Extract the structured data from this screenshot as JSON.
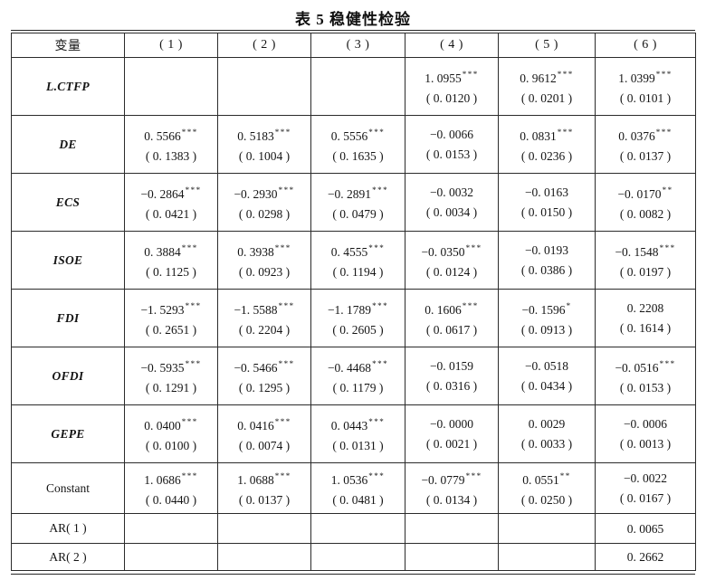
{
  "title": "表 5  稳健性检验",
  "table": {
    "header": [
      "变量",
      "( 1 )",
      "( 2 )",
      "( 3 )",
      "( 4 )",
      "( 5 )",
      "( 6 )"
    ],
    "rows": [
      {
        "label": "L.CTFP",
        "italic": true,
        "cells": [
          {
            "coef": "",
            "stars": "",
            "se": ""
          },
          {
            "coef": "",
            "stars": "",
            "se": ""
          },
          {
            "coef": "",
            "stars": "",
            "se": ""
          },
          {
            "coef": "1. 0955",
            "stars": "***",
            "se": "( 0. 0120 )"
          },
          {
            "coef": "0. 9612",
            "stars": "***",
            "se": "( 0. 0201 )"
          },
          {
            "coef": "1. 0399",
            "stars": "***",
            "se": "( 0. 0101 )"
          }
        ]
      },
      {
        "label": "DE",
        "italic": true,
        "cells": [
          {
            "coef": "0. 5566",
            "stars": "***",
            "se": "( 0. 1383 )"
          },
          {
            "coef": "0. 5183",
            "stars": "***",
            "se": "( 0. 1004 )"
          },
          {
            "coef": "0. 5556",
            "stars": "***",
            "se": "( 0. 1635 )"
          },
          {
            "coef": "−0. 0066",
            "stars": "",
            "se": "( 0. 0153 )"
          },
          {
            "coef": "0. 0831",
            "stars": "***",
            "se": "( 0. 0236 )"
          },
          {
            "coef": "0. 0376",
            "stars": "***",
            "se": "( 0. 0137 )"
          }
        ]
      },
      {
        "label": "ECS",
        "italic": true,
        "cells": [
          {
            "coef": "−0. 2864",
            "stars": "***",
            "se": "( 0. 0421 )"
          },
          {
            "coef": "−0. 2930",
            "stars": "***",
            "se": "( 0. 0298 )"
          },
          {
            "coef": "−0. 2891",
            "stars": "***",
            "se": "( 0. 0479 )"
          },
          {
            "coef": "−0. 0032",
            "stars": "",
            "se": "( 0. 0034 )"
          },
          {
            "coef": "−0. 0163",
            "stars": "",
            "se": "( 0. 0150 )"
          },
          {
            "coef": "−0. 0170",
            "stars": "**",
            "se": "( 0. 0082 )"
          }
        ]
      },
      {
        "label": "ISOE",
        "italic": true,
        "cells": [
          {
            "coef": "0. 3884",
            "stars": "***",
            "se": "( 0. 1125 )"
          },
          {
            "coef": "0. 3938",
            "stars": "***",
            "se": "( 0. 0923 )"
          },
          {
            "coef": "0. 4555",
            "stars": "***",
            "se": "( 0. 1194 )"
          },
          {
            "coef": "−0. 0350",
            "stars": "***",
            "se": "( 0. 0124 )"
          },
          {
            "coef": "−0. 0193",
            "stars": "",
            "se": "( 0. 0386 )"
          },
          {
            "coef": "−0. 1548",
            "stars": "***",
            "se": "( 0. 0197 )"
          }
        ]
      },
      {
        "label": "FDI",
        "italic": true,
        "cells": [
          {
            "coef": "−1. 5293",
            "stars": "***",
            "se": "( 0. 2651 )"
          },
          {
            "coef": "−1. 5588",
            "stars": "***",
            "se": "( 0. 2204 )"
          },
          {
            "coef": "−1. 1789",
            "stars": "***",
            "se": "( 0. 2605 )"
          },
          {
            "coef": "0. 1606",
            "stars": "***",
            "se": "( 0. 0617 )"
          },
          {
            "coef": "−0. 1596",
            "stars": "*",
            "se": "( 0. 0913 )"
          },
          {
            "coef": "0. 2208",
            "stars": "",
            "se": "( 0. 1614 )"
          }
        ]
      },
      {
        "label": "OFDI",
        "italic": true,
        "cells": [
          {
            "coef": "−0. 5935",
            "stars": "***",
            "se": "( 0. 1291 )"
          },
          {
            "coef": "−0. 5466",
            "stars": "***",
            "se": "( 0. 1295 )"
          },
          {
            "coef": "−0. 4468",
            "stars": "***",
            "se": "( 0. 1179 )"
          },
          {
            "coef": "−0. 0159",
            "stars": "",
            "se": "( 0. 0316 )"
          },
          {
            "coef": "−0. 0518",
            "stars": "",
            "se": "( 0. 0434 )"
          },
          {
            "coef": "−0. 0516",
            "stars": "***",
            "se": "( 0. 0153 )"
          }
        ]
      },
      {
        "label": "GEPE",
        "italic": true,
        "cells": [
          {
            "coef": "0. 0400",
            "stars": "***",
            "se": "( 0. 0100 )"
          },
          {
            "coef": "0. 0416",
            "stars": "***",
            "se": "( 0. 0074 )"
          },
          {
            "coef": "0. 0443",
            "stars": "***",
            "se": "( 0. 0131 )"
          },
          {
            "coef": "−0. 0000",
            "stars": "",
            "se": "( 0. 0021 )"
          },
          {
            "coef": "0. 0029",
            "stars": "",
            "se": "( 0. 0033 )"
          },
          {
            "coef": "−0. 0006",
            "stars": "",
            "se": "( 0. 0013 )"
          }
        ]
      },
      {
        "label": "Constant",
        "italic": false,
        "cells": [
          {
            "coef": "1. 0686",
            "stars": "***",
            "se": "( 0. 0440 )"
          },
          {
            "coef": "1. 0688",
            "stars": "***",
            "se": "( 0. 0137 )"
          },
          {
            "coef": "1. 0536",
            "stars": "***",
            "se": "( 0. 0481 )"
          },
          {
            "coef": "−0. 0779",
            "stars": "***",
            "se": "( 0. 0134 )"
          },
          {
            "coef": "0. 0551",
            "stars": "**",
            "se": "( 0. 0250 )"
          },
          {
            "coef": "−0. 0022",
            "stars": "",
            "se": "( 0. 0167 )"
          }
        ]
      },
      {
        "label": "AR( 1 )",
        "italic": false,
        "cells": [
          {
            "coef": "",
            "stars": "",
            "se": ""
          },
          {
            "coef": "",
            "stars": "",
            "se": ""
          },
          {
            "coef": "",
            "stars": "",
            "se": ""
          },
          {
            "coef": "",
            "stars": "",
            "se": ""
          },
          {
            "coef": "",
            "stars": "",
            "se": ""
          },
          {
            "coef": "0. 0065",
            "stars": "",
            "se": ""
          }
        ]
      },
      {
        "label": "AR( 2 )",
        "italic": false,
        "cells": [
          {
            "coef": "",
            "stars": "",
            "se": ""
          },
          {
            "coef": "",
            "stars": "",
            "se": ""
          },
          {
            "coef": "",
            "stars": "",
            "se": ""
          },
          {
            "coef": "",
            "stars": "",
            "se": ""
          },
          {
            "coef": "",
            "stars": "",
            "se": ""
          },
          {
            "coef": "0. 2662",
            "stars": "",
            "se": ""
          }
        ]
      }
    ]
  }
}
